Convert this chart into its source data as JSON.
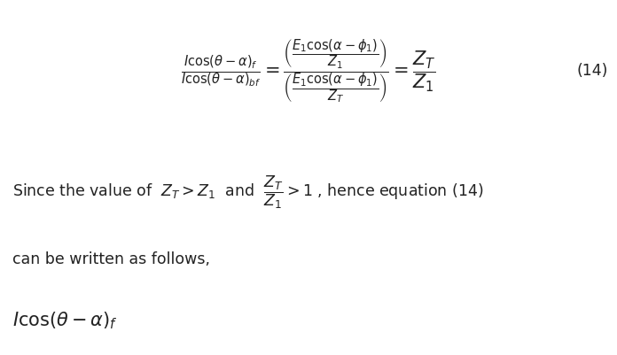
{
  "background_color": "#ffffff",
  "fig_width": 6.96,
  "fig_height": 4.02,
  "dpi": 100,
  "eq_number": "(14)",
  "fontsize_eq": 15,
  "fontsize_text": 12.5
}
